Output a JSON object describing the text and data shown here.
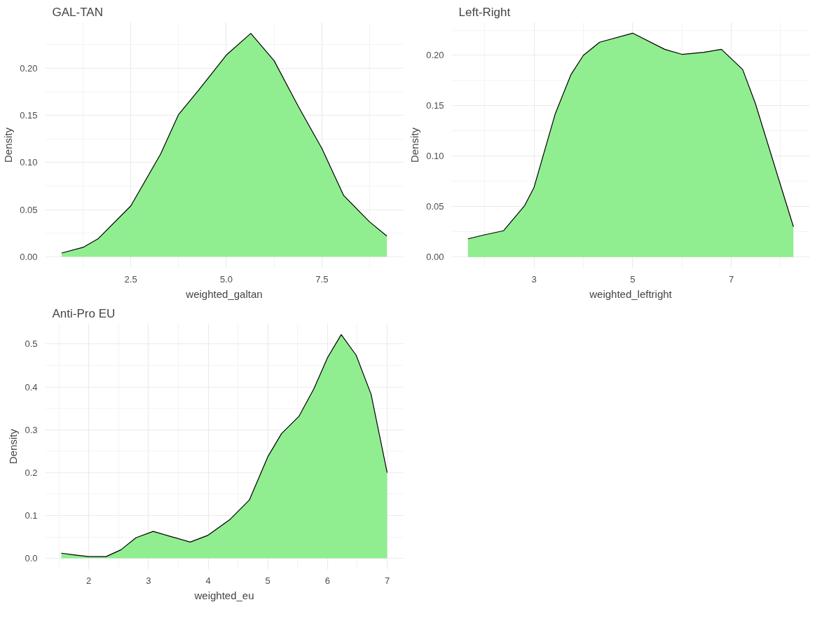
{
  "chart_data": [
    {
      "type": "area",
      "title": "GAL-TAN",
      "xlabel": "weighted_galtan",
      "ylabel": "Density",
      "grid": true,
      "marker": "none",
      "x": [
        0.69,
        1.25,
        1.64,
        2.5,
        3.28,
        3.75,
        4.26,
        5.0,
        5.64,
        6.25,
        6.89,
        7.5,
        8.07,
        8.75,
        9.2
      ],
      "series": [
        {
          "color": "#90ee90",
          "values": [
            0.004,
            0.01,
            0.019,
            0.054,
            0.109,
            0.151,
            0.176,
            0.214,
            0.237,
            0.208,
            0.159,
            0.115,
            0.065,
            0.037,
            0.022
          ]
        }
      ],
      "xlim": [
        0.26,
        9.63
      ],
      "xticks": [
        2.5,
        {
          "value": 5.0,
          "label": "5.0"
        },
        7.5
      ],
      "ylim": [
        -0.012,
        0.249
      ],
      "yticks": [
        {
          "value": 0,
          "label": "0.00"
        },
        {
          "value": 0.05,
          "label": "0.05"
        },
        {
          "value": 0.1,
          "label": "0.10"
        },
        {
          "value": 0.15,
          "label": "0.15"
        },
        {
          "value": 0.2,
          "label": "0.20"
        }
      ]
    },
    {
      "type": "area",
      "title": "Left-Right",
      "xlabel": "weighted_leftright",
      "ylabel": "Density",
      "grid": true,
      "marker": "none",
      "x": [
        1.66,
        2.0,
        2.38,
        2.81,
        3.0,
        3.43,
        3.75,
        4.0,
        4.33,
        5.0,
        5.65,
        6.0,
        6.44,
        6.8,
        7.23,
        7.49,
        8.0,
        8.26
      ],
      "series": [
        {
          "color": "#90ee90",
          "values": [
            0.018,
            0.022,
            0.026,
            0.051,
            0.069,
            0.142,
            0.181,
            0.2,
            0.213,
            0.222,
            0.206,
            0.201,
            0.203,
            0.206,
            0.186,
            0.152,
            0.071,
            0.03
          ]
        }
      ],
      "xlim": [
        1.33,
        8.59
      ],
      "xticks": [
        3,
        5,
        7
      ],
      "ylim": [
        -0.011,
        0.233
      ],
      "yticks": [
        {
          "value": 0,
          "label": "0.00"
        },
        {
          "value": 0.05,
          "label": "0.05"
        },
        {
          "value": 0.1,
          "label": "0.10"
        },
        {
          "value": 0.15,
          "label": "0.15"
        },
        {
          "value": 0.2,
          "label": "0.20"
        }
      ]
    },
    {
      "type": "area",
      "title": "Anti-Pro EU",
      "xlabel": "weighted_eu",
      "ylabel": "Density",
      "grid": true,
      "marker": "none",
      "x": [
        1.54,
        1.75,
        2.0,
        2.29,
        2.54,
        2.79,
        3.08,
        3.37,
        3.7,
        4.0,
        4.36,
        4.69,
        5.0,
        5.23,
        5.52,
        5.77,
        6.0,
        6.23,
        6.48,
        6.73,
        7.0
      ],
      "series": [
        {
          "color": "#90ee90",
          "values": [
            0.012,
            0.008,
            0.004,
            0.004,
            0.02,
            0.048,
            0.063,
            0.051,
            0.038,
            0.054,
            0.09,
            0.136,
            0.237,
            0.291,
            0.331,
            0.395,
            0.468,
            0.522,
            0.474,
            0.383,
            0.2
          ]
        }
      ],
      "xlim": [
        1.27,
        7.27
      ],
      "xticks": [
        2,
        3,
        4,
        5,
        6,
        7
      ],
      "ylim": [
        -0.026,
        0.548
      ],
      "yticks": [
        {
          "value": 0,
          "label": "0.0"
        },
        {
          "value": 0.1,
          "label": "0.1"
        },
        {
          "value": 0.2,
          "label": "0.2"
        },
        {
          "value": 0.3,
          "label": "0.3"
        },
        {
          "value": 0.4,
          "label": "0.4"
        },
        {
          "value": 0.5,
          "label": "0.5"
        }
      ]
    }
  ]
}
